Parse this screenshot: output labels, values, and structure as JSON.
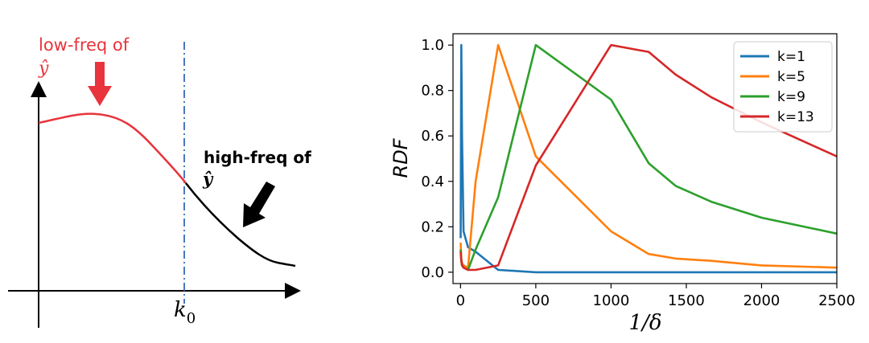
{
  "left_panel": {
    "low_label": "low-freq of",
    "low_symbol": "ŷ",
    "high_label": "high-freq of",
    "high_symbol": "ŷ",
    "cutoff_label": "k",
    "cutoff_subscript": "0",
    "colors": {
      "low": "#e8343c",
      "high": "#000000",
      "cutoff": "#4a78c0"
    }
  },
  "chart_data": {
    "type": "line",
    "xlabel": "1/δ",
    "ylabel": "RDF",
    "xlim": [
      -50,
      2500
    ],
    "ylim": [
      -0.05,
      1.05
    ],
    "xticks": [
      0,
      500,
      1000,
      1500,
      2000,
      2500
    ],
    "yticks": [
      0.0,
      0.2,
      0.4,
      0.6,
      0.8,
      1.0
    ],
    "xtick_labels": [
      "0",
      "500",
      "1000",
      "1500",
      "2000",
      "2500"
    ],
    "ytick_labels": [
      "0.0",
      "0.2",
      "0.4",
      "0.6",
      "0.8",
      "1.0"
    ],
    "grid": false,
    "legend": "top-right",
    "series": [
      {
        "name": "k=1",
        "color": "#1f77b4",
        "x": [
          1,
          5,
          10,
          20,
          50,
          100,
          250,
          500,
          1000,
          1500,
          2000,
          2500
        ],
        "y": [
          0.15,
          1.0,
          0.6,
          0.18,
          0.11,
          0.09,
          0.01,
          0.0,
          0.0,
          0.0,
          0.0,
          0.0
        ]
      },
      {
        "name": "k=5",
        "color": "#ff7f0e",
        "x": [
          1,
          5,
          10,
          20,
          50,
          100,
          250,
          500,
          1000,
          1250,
          1429,
          1667,
          2000,
          2500
        ],
        "y": [
          0.13,
          0.06,
          0.04,
          0.03,
          0.02,
          0.4,
          1.0,
          0.51,
          0.18,
          0.08,
          0.06,
          0.05,
          0.03,
          0.02
        ]
      },
      {
        "name": "k=9",
        "color": "#2ca02c",
        "x": [
          1,
          5,
          10,
          20,
          50,
          100,
          250,
          500,
          1000,
          1250,
          1429,
          1667,
          2000,
          2500
        ],
        "y": [
          0.1,
          0.05,
          0.03,
          0.02,
          0.01,
          0.1,
          0.33,
          1.0,
          0.76,
          0.48,
          0.38,
          0.31,
          0.24,
          0.17
        ]
      },
      {
        "name": "k=13",
        "color": "#d62728",
        "x": [
          1,
          5,
          10,
          20,
          50,
          100,
          250,
          500,
          1000,
          1250,
          1429,
          1667,
          2000,
          2500
        ],
        "y": [
          0.09,
          0.05,
          0.03,
          0.02,
          0.01,
          0.01,
          0.03,
          0.47,
          1.0,
          0.97,
          0.87,
          0.77,
          0.66,
          0.51
        ]
      }
    ]
  }
}
